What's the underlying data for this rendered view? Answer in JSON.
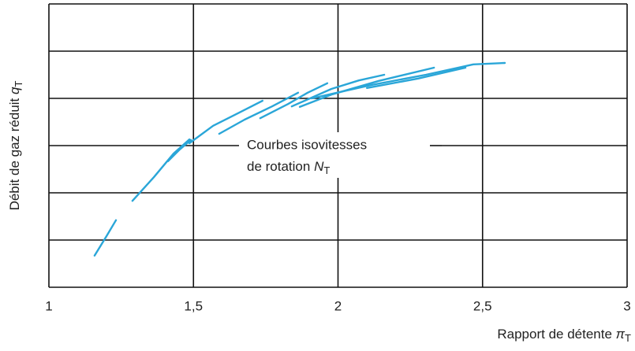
{
  "chart_data": {
    "type": "line",
    "x_label": {
      "text": "Rapport de détente ",
      "symbol": "π",
      "subscript": "T"
    },
    "y_label": {
      "text": "Débit de gaz réduit ",
      "symbol": "q",
      "subscript": "T"
    },
    "annotation": {
      "lines": [
        "Courbes isovitesses",
        "de rotation "
      ],
      "symbol": "N",
      "subscript": "T"
    },
    "xlim": [
      1,
      3
    ],
    "xticks": [
      1,
      {
        "value": 1.5,
        "label": "1,5"
      },
      2,
      {
        "value": 2.5,
        "label": "2,5"
      },
      3
    ],
    "ylim": [
      0,
      6
    ],
    "yticks": [
      0,
      1,
      2,
      3,
      4,
      5,
      6
    ],
    "ytick_labels": false,
    "grid": true,
    "color": "#2aa6d8",
    "segments": [
      {
        "x": [
          1.158,
          1.199,
          1.232
        ],
        "y": [
          0.67,
          1.08,
          1.42
        ]
      },
      {
        "x": [
          1.289,
          1.363,
          1.431,
          1.486
        ],
        "y": [
          1.83,
          2.33,
          2.83,
          3.13
        ]
      },
      {
        "x": [
          1.412,
          1.453,
          1.491
        ],
        "y": [
          2.67,
          2.92,
          3.12
        ]
      },
      {
        "x": [
          1.486,
          1.568,
          1.649,
          1.739
        ],
        "y": [
          3.05,
          3.42,
          3.67,
          3.95
        ]
      },
      {
        "x": [
          1.589,
          1.677,
          1.772,
          1.862
        ],
        "y": [
          3.25,
          3.55,
          3.83,
          4.12
        ]
      },
      {
        "x": [
          1.731,
          1.827,
          1.895,
          1.963
        ],
        "y": [
          3.58,
          3.88,
          4.12,
          4.32
        ]
      },
      {
        "x": [
          1.84,
          1.977,
          2.072,
          2.16
        ],
        "y": [
          3.83,
          4.2,
          4.38,
          4.5
        ]
      },
      {
        "x": [
          1.868,
          1.977,
          2.141,
          2.332
        ],
        "y": [
          3.82,
          4.08,
          4.37,
          4.65
        ]
      },
      {
        "x": [
          1.909,
          2.113,
          2.304,
          2.468,
          2.577
        ],
        "y": [
          4.0,
          4.28,
          4.5,
          4.72,
          4.75
        ]
      },
      {
        "x": [
          2.1,
          2.277,
          2.441
        ],
        "y": [
          4.22,
          4.42,
          4.65
        ]
      }
    ]
  }
}
